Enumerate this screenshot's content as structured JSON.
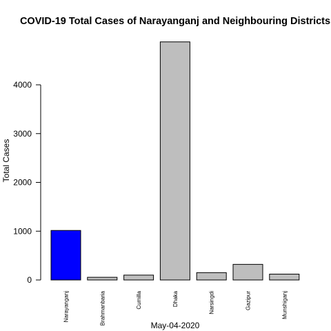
{
  "chart_data": {
    "type": "bar",
    "title": "COVID-19 Total Cases of Narayanganj and Neighbouring Districts",
    "xlabel": "May-04-2020",
    "ylabel": "Total Cases",
    "categories": [
      "Narayanganj",
      "Brahmanbaria",
      "Cumilla",
      "Dhaka",
      "Narsingdi",
      "Gazipur",
      "Munshiganj"
    ],
    "values": [
      1015,
      55,
      100,
      4880,
      150,
      320,
      120
    ],
    "colors": [
      "#0000ff",
      "#bebebe",
      "#bebebe",
      "#bebebe",
      "#bebebe",
      "#bebebe",
      "#bebebe"
    ],
    "yticks": [
      0,
      1000,
      2000,
      3000,
      4000
    ],
    "ylim": [
      0,
      4880
    ],
    "grid": false
  }
}
